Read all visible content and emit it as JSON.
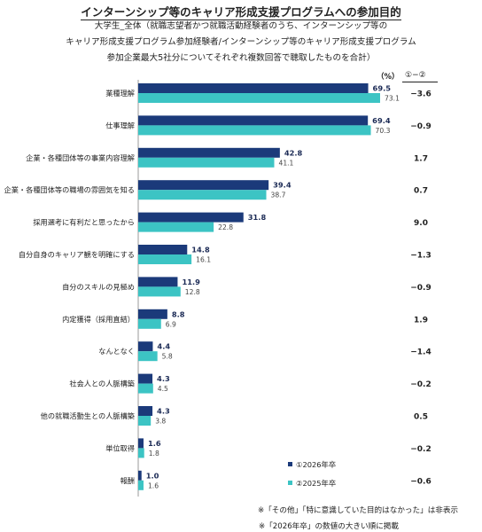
{
  "title": "インターンシップ等のキャリア形成支援プログラムへの参加目的",
  "subtitle_lines": [
    "大学生_全体（就職志望者かつ就職活動経験者のうち、インターンシップ等の",
    "キャリア形成支援プログラム参加経験者/インターンシップ等のキャリア形成支援プログラム",
    "参加企業最大5社分についてそれぞれ複数回答で聴取したものを合計）"
  ],
  "unit_label": "（%）",
  "diff_header": "①−②",
  "legend": {
    "series1": "①2026年卒",
    "series2": "②2025年卒"
  },
  "notes": [
    "※「その他」「特に意識していた目的はなかった」は非表示",
    "※「2026年卒」の数値の大きい順に掲載"
  ],
  "colors": {
    "series1": "#1b3a7a",
    "series2": "#3cc4c4"
  },
  "chart_data": {
    "type": "bar",
    "orientation": "horizontal",
    "categories": [
      "業種理解",
      "仕事理解",
      "企業・各種団体等の事業内容理解",
      "企業・各種団体等の職場の雰囲気を知る",
      "採用選考に有利だと思ったから",
      "自分自身のキャリア観を明確にする",
      "自分のスキルの見極め",
      "内定獲得（採用直結）",
      "なんとなく",
      "社会人との人脈構築",
      "他の就職活動生との人脈構築",
      "単位取得",
      "報酬"
    ],
    "series": [
      {
        "name": "①2026年卒",
        "values": [
          69.5,
          69.4,
          42.8,
          39.4,
          31.8,
          14.8,
          11.9,
          8.8,
          4.4,
          4.3,
          4.3,
          1.6,
          1.0
        ]
      },
      {
        "name": "②2025年卒",
        "values": [
          73.1,
          70.3,
          41.1,
          38.7,
          22.8,
          16.1,
          12.8,
          6.9,
          5.8,
          4.5,
          3.8,
          1.8,
          1.6
        ]
      }
    ],
    "differences": [
      "−3.6",
      "−0.9",
      "1.7",
      "0.7",
      "9.0",
      "−1.3",
      "−0.9",
      "1.9",
      "−1.4",
      "−0.2",
      "0.5",
      "−0.2",
      "−0.6"
    ],
    "xlim": [
      0,
      75
    ]
  }
}
